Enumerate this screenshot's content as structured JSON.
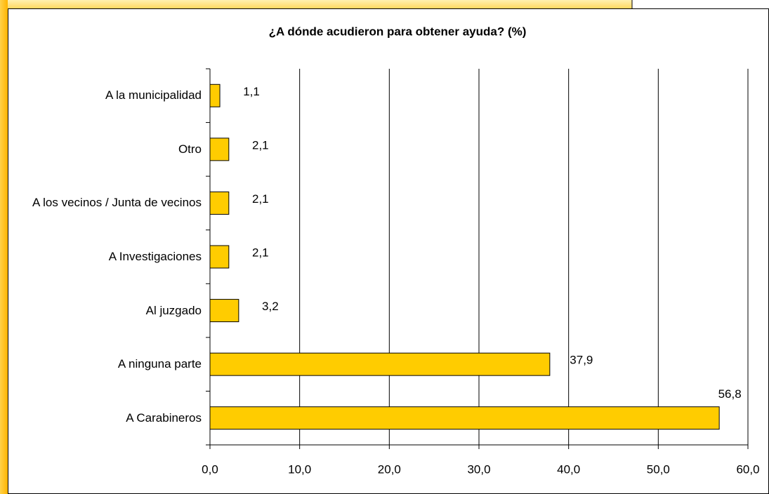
{
  "chart_data": {
    "type": "bar",
    "orientation": "horizontal",
    "title": "¿A dónde acudieron para obtener ayuda? (%)",
    "categories": [
      "A la municipalidad",
      "Otro",
      "A los vecinos / Junta de vecinos",
      "A Investigaciones",
      "Al juzgado",
      "A ninguna parte",
      "A Carabineros"
    ],
    "values": [
      1.1,
      2.1,
      2.1,
      2.1,
      3.2,
      37.9,
      56.8
    ],
    "value_labels": [
      "1,1",
      "2,1",
      "2,1",
      "2,1",
      "3,2",
      "37,9",
      "56,8"
    ],
    "color": "#ffcc00",
    "xlim": [
      0,
      60
    ],
    "xticks": [
      {
        "value": 0,
        "label": "0,0"
      },
      {
        "value": 10,
        "label": "10,0"
      },
      {
        "value": 20,
        "label": "20,0"
      },
      {
        "value": 30,
        "label": "30,0"
      },
      {
        "value": 40,
        "label": "40,0"
      },
      {
        "value": 50,
        "label": "50,0"
      },
      {
        "value": 60,
        "label": "60,0"
      }
    ],
    "grid": true
  }
}
